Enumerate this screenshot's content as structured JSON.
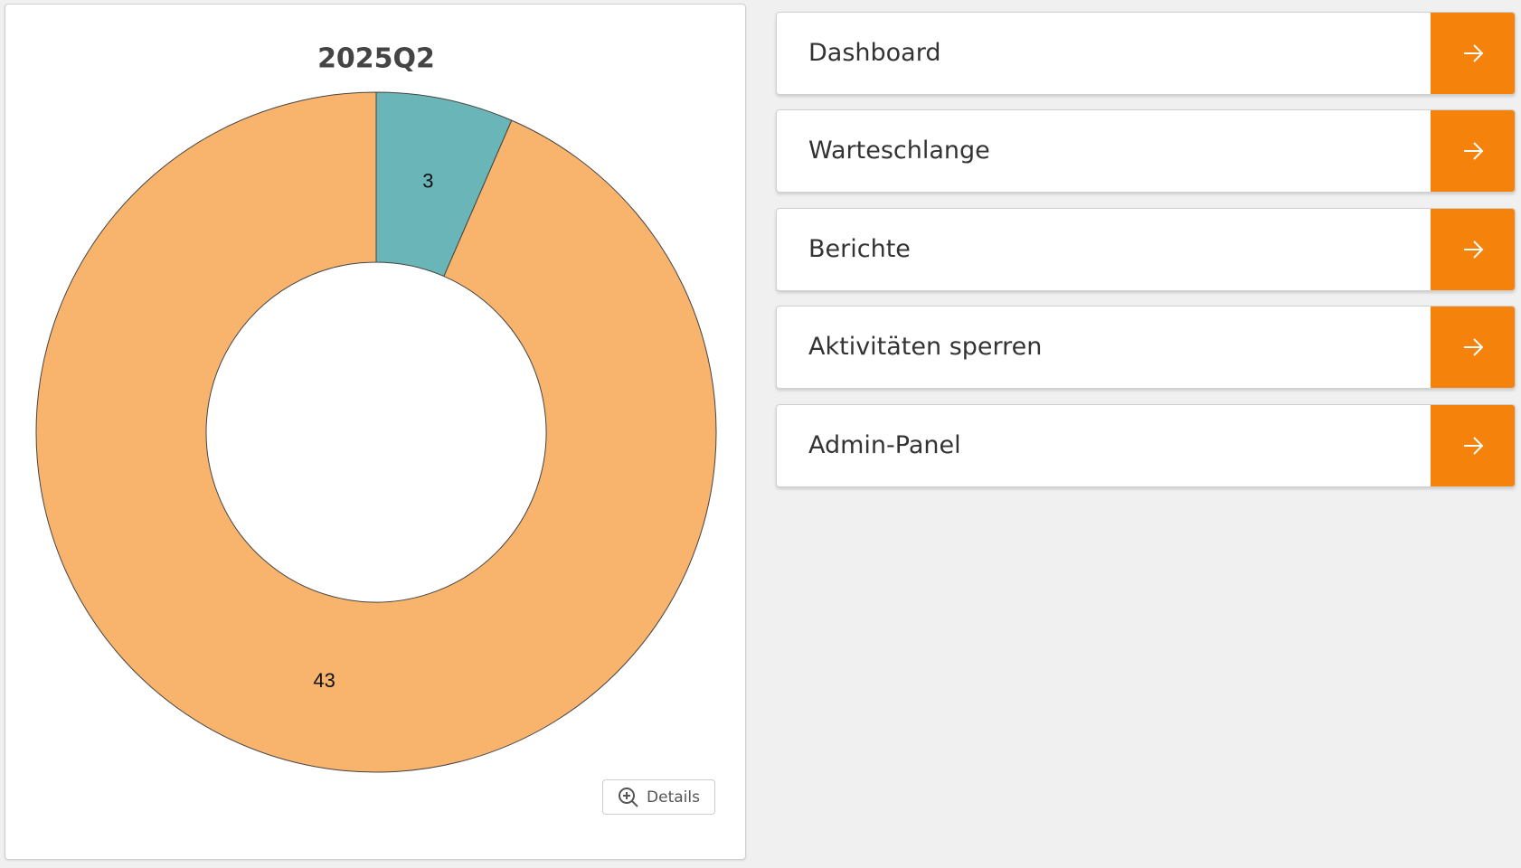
{
  "chart_data": {
    "type": "donut",
    "title": "2025Q2",
    "values": [
      3,
      43
    ],
    "colors": [
      "#6ab5b8",
      "#f8b46d"
    ],
    "inner_radius_ratio": 0.5
  },
  "details_button": "Details",
  "menu": [
    "Dashboard",
    "Warteschlange",
    "Berichte",
    "Aktivitäten sperren",
    "Admin-Panel"
  ]
}
